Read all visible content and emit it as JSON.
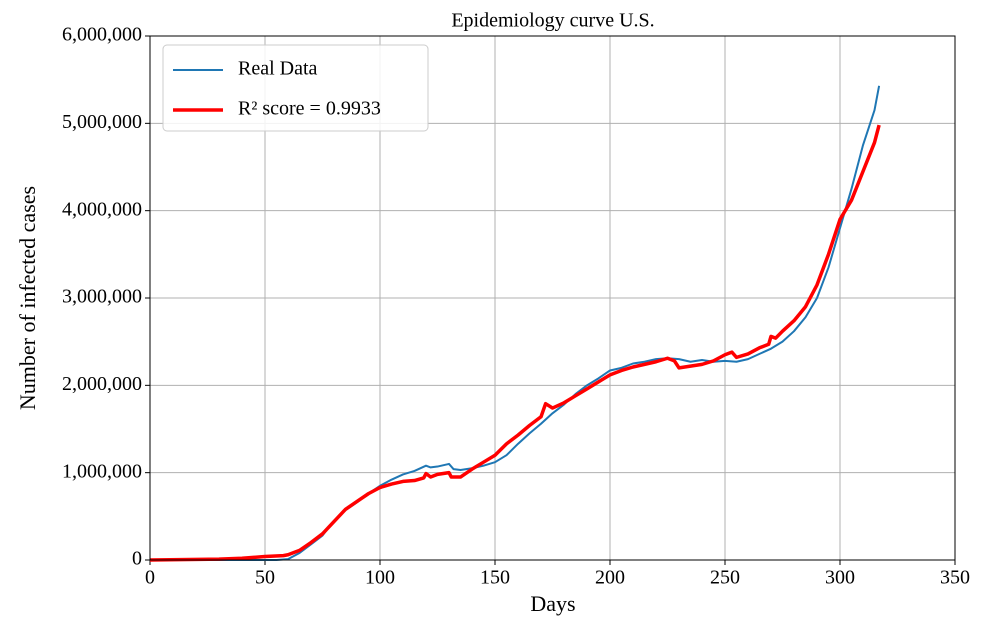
{
  "chart_data": {
    "type": "line",
    "title": "Epidemiology curve U.S.",
    "x_label": "Days",
    "y_label": "Number of infected cases",
    "xlim": [
      0,
      350
    ],
    "xticks": [
      0,
      50,
      100,
      150,
      200,
      250,
      300,
      350
    ],
    "ylim": [
      0,
      6000000
    ],
    "yticks": [
      0,
      {
        "value": 1000000,
        "label": "1,000,000"
      },
      {
        "value": 2000000,
        "label": "2,000,000"
      },
      {
        "value": 3000000,
        "label": "3,000,000"
      },
      {
        "value": 4000000,
        "label": "4,000,000"
      },
      {
        "value": 5000000,
        "label": "5,000,000"
      },
      {
        "value": 6000000,
        "label": "6,000,000"
      }
    ],
    "grid": true,
    "legend": "upper left",
    "series": [
      {
        "name": "Real Data",
        "color": "#1f77b4",
        "width": 2,
        "x": [
          0,
          10,
          20,
          30,
          40,
          50,
          55,
          60,
          65,
          70,
          75,
          80,
          85,
          90,
          95,
          100,
          105,
          110,
          115,
          120,
          122,
          125,
          130,
          132,
          135,
          140,
          145,
          150,
          155,
          160,
          165,
          170,
          175,
          180,
          185,
          190,
          195,
          200,
          205,
          210,
          215,
          220,
          225,
          230,
          235,
          240,
          245,
          250,
          255,
          260,
          265,
          270,
          275,
          280,
          285,
          290,
          295,
          300,
          305,
          310,
          315,
          317
        ],
        "values": [
          0,
          0,
          0,
          0,
          0,
          0,
          0,
          10000,
          80000,
          180000,
          280000,
          450000,
          570000,
          660000,
          760000,
          850000,
          920000,
          980000,
          1020000,
          1080000,
          1060000,
          1070000,
          1100000,
          1040000,
          1030000,
          1050000,
          1080000,
          1120000,
          1200000,
          1330000,
          1450000,
          1560000,
          1680000,
          1780000,
          1900000,
          2000000,
          2080000,
          2170000,
          2200000,
          2250000,
          2270000,
          2300000,
          2310000,
          2300000,
          2270000,
          2290000,
          2270000,
          2280000,
          2270000,
          2300000,
          2360000,
          2420000,
          2500000,
          2620000,
          2780000,
          3000000,
          3350000,
          3800000,
          4250000,
          4750000,
          5150000,
          5430000
        ]
      },
      {
        "name": "R² score = 0.9933",
        "color": "#ff0000",
        "width": 3.5,
        "x": [
          0,
          30,
          40,
          50,
          58,
          60,
          65,
          70,
          75,
          80,
          85,
          90,
          95,
          100,
          105,
          110,
          115,
          119,
          120,
          122,
          125,
          130,
          131,
          135,
          140,
          145,
          150,
          155,
          160,
          165,
          170,
          172,
          175,
          180,
          185,
          190,
          195,
          200,
          205,
          210,
          215,
          220,
          225,
          228,
          230,
          235,
          240,
          245,
          250,
          253,
          255,
          260,
          265,
          269,
          270,
          272,
          275,
          280,
          285,
          290,
          295,
          300,
          305,
          310,
          315,
          317
        ],
        "values": [
          0,
          10000,
          20000,
          40000,
          50000,
          60000,
          110000,
          200000,
          300000,
          440000,
          580000,
          670000,
          760000,
          830000,
          870000,
          900000,
          910000,
          940000,
          990000,
          950000,
          980000,
          1000000,
          950000,
          950000,
          1040000,
          1120000,
          1200000,
          1330000,
          1430000,
          1540000,
          1640000,
          1790000,
          1740000,
          1800000,
          1880000,
          1960000,
          2040000,
          2120000,
          2170000,
          2210000,
          2240000,
          2270000,
          2310000,
          2280000,
          2200000,
          2220000,
          2240000,
          2280000,
          2350000,
          2380000,
          2320000,
          2360000,
          2430000,
          2470000,
          2560000,
          2540000,
          2620000,
          2740000,
          2900000,
          3150000,
          3500000,
          3900000,
          4120000,
          4450000,
          4780000,
          4980000
        ]
      }
    ]
  }
}
